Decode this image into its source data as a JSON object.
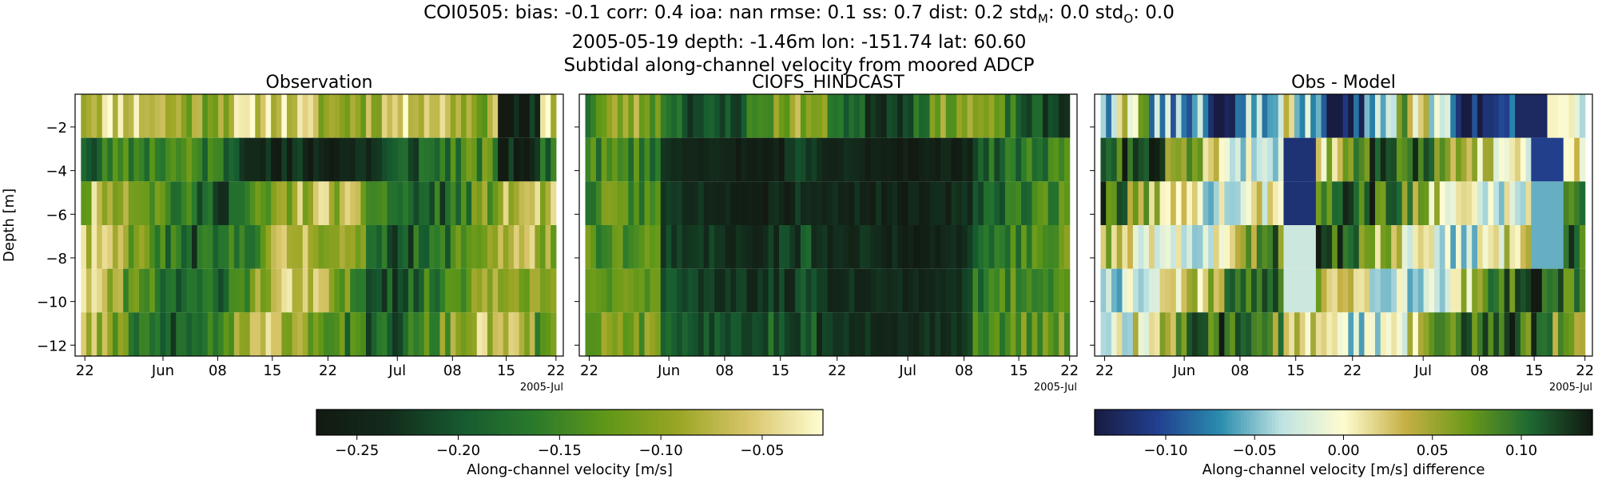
{
  "figure": {
    "title_lines": [
      "COI0505: bias: -0.1  corr: 0.4  ioa: nan  rmse: 0.1  ss: 0.7  dist: 0.2  std",
      "2005-05-19 depth: -1.46m lon: -151.74 lat: 60.60",
      "Subtidal along-channel velocity from moored ADCP"
    ],
    "title_std_m_sub": "M",
    "title_std_m_value": ": 0.0  std",
    "title_std_o_sub": "O",
    "title_std_o_value": ": 0.0"
  },
  "colors": {
    "speed_colormap": [
      "#fefcd0",
      "#d9c66b",
      "#9aa524",
      "#5f9718",
      "#2a7a2c",
      "#165a30",
      "#132c1c",
      "#121a12"
    ],
    "diff_colormap": [
      "#181c43",
      "#22408f",
      "#2a8cae",
      "#bfe3e2",
      "#fefcd0",
      "#c6b044",
      "#6c9a1a",
      "#1f6a33",
      "#121a12"
    ]
  },
  "chart_data": [
    {
      "type": "heatmap",
      "title": "Observation",
      "ylabel": "Depth [m]",
      "ylim": [
        -12.5,
        -0.5
      ],
      "y_ticks": [
        -2,
        -4,
        -6,
        -8,
        -10,
        -12
      ],
      "x_tick_labels": [
        "22",
        "Jun",
        "08",
        "15",
        "22",
        "Jul",
        "08",
        "15",
        "22"
      ],
      "x_offset_label": "2005-Jul",
      "x_range": [
        "2005-05-19",
        "2005-07-22"
      ],
      "depth_bins": [
        -1.5,
        -3.5,
        -5.5,
        -7.5,
        -9.5,
        -11.5
      ],
      "colorbar": {
        "label": "Along-channel velocity [m/s]",
        "min": -0.27,
        "max": -0.02,
        "ticks": [
          -0.25,
          -0.2,
          -0.15,
          -0.1,
          -0.05
        ],
        "tick_labels": [
          "−0.25",
          "−0.20",
          "−0.15",
          "−0.10",
          "−0.05"
        ]
      },
      "seed": 11
    },
    {
      "type": "heatmap",
      "title": "CIOFS_HINDCAST",
      "ylim": [
        -12.5,
        -0.5
      ],
      "x_tick_labels": [
        "22",
        "Jun",
        "08",
        "15",
        "22",
        "Jul",
        "08",
        "15",
        "22"
      ],
      "x_offset_label": "2005-Jul",
      "x_range": [
        "2005-05-19",
        "2005-07-22"
      ],
      "depth_bins": [
        -1.5,
        -3.5,
        -5.5,
        -7.5,
        -9.5,
        -11.5
      ],
      "seed": 23
    },
    {
      "type": "heatmap",
      "title": "Obs - Model",
      "ylim": [
        -12.5,
        -0.5
      ],
      "x_tick_labels": [
        "22",
        "Jun",
        "08",
        "15",
        "22",
        "Jul",
        "08",
        "15",
        "22"
      ],
      "x_offset_label": "2005-Jul",
      "x_range": [
        "2005-05-19",
        "2005-07-22"
      ],
      "depth_bins": [
        -1.5,
        -3.5,
        -5.5,
        -7.5,
        -9.5,
        -11.5
      ],
      "colorbar": {
        "label": "Along-channel velocity [m/s] difference",
        "min": -0.14,
        "max": 0.14,
        "ticks": [
          -0.1,
          -0.05,
          0,
          0.05,
          0.1
        ],
        "tick_labels": [
          "−0.10",
          "−0.05",
          "0.00",
          "0.05",
          "0.10"
        ]
      },
      "seed": 37
    }
  ]
}
